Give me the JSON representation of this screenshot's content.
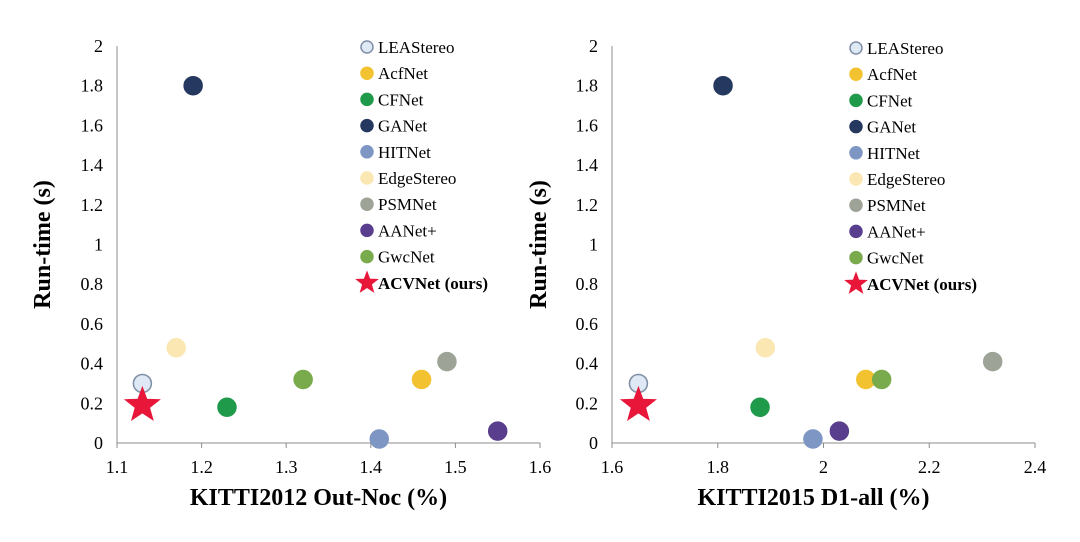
{
  "chart_data": [
    {
      "type": "scatter",
      "xlabel": "KITTI2012 Out-Noc (%)",
      "ylabel": "Run-time (s)",
      "xlim": [
        1.1,
        1.6
      ],
      "ylim": [
        0,
        2
      ],
      "xticks": [
        "1.1",
        "1.2",
        "1.3",
        "1.4",
        "1.5",
        "1.6"
      ],
      "yticks": [
        "0",
        "0.2",
        "0.4",
        "0.6",
        "0.8",
        "1",
        "1.2",
        "1.4",
        "1.6",
        "1.8",
        "2"
      ],
      "legend_position": "top-right",
      "series": [
        {
          "name": "LEAStereo",
          "color": "#dfe9f5",
          "edge": "#7f8fa6",
          "marker": "circle",
          "points": [
            {
              "x": 1.13,
              "y": 0.3
            }
          ]
        },
        {
          "name": "AcfNet",
          "color": "#f2c230",
          "edge": "#f2c230",
          "marker": "circle",
          "points": [
            {
              "x": 1.46,
              "y": 0.32
            }
          ]
        },
        {
          "name": "CFNet",
          "color": "#1f9a4b",
          "edge": "#1f9a4b",
          "marker": "circle",
          "points": [
            {
              "x": 1.23,
              "y": 0.18
            }
          ]
        },
        {
          "name": "GANet",
          "color": "#25385f",
          "edge": "#25385f",
          "marker": "circle",
          "points": [
            {
              "x": 1.19,
              "y": 1.8
            }
          ]
        },
        {
          "name": "HITNet",
          "color": "#7d96c3",
          "edge": "#7d96c3",
          "marker": "circle",
          "points": [
            {
              "x": 1.41,
              "y": 0.02
            }
          ]
        },
        {
          "name": "EdgeStereo",
          "color": "#fbe7b2",
          "edge": "#fbe7b2",
          "marker": "circle",
          "points": [
            {
              "x": 1.17,
              "y": 0.48
            }
          ]
        },
        {
          "name": "PSMNet",
          "color": "#9ea397",
          "edge": "#9ea397",
          "marker": "circle",
          "points": [
            {
              "x": 1.49,
              "y": 0.41
            }
          ]
        },
        {
          "name": "AANet+",
          "color": "#5a3e8e",
          "edge": "#5a3e8e",
          "marker": "circle",
          "points": [
            {
              "x": 1.55,
              "y": 0.06
            }
          ]
        },
        {
          "name": "GwcNet",
          "color": "#79ab4d",
          "edge": "#79ab4d",
          "marker": "circle",
          "points": [
            {
              "x": 1.32,
              "y": 0.32
            }
          ]
        },
        {
          "name": "ACVNet (ours)",
          "color": "#e8173a",
          "edge": "#e8173a",
          "marker": "star",
          "bold": true,
          "points": [
            {
              "x": 1.13,
              "y": 0.19
            }
          ]
        }
      ]
    },
    {
      "type": "scatter",
      "xlabel": "KITTI2015 D1-all (%)",
      "ylabel": "Run-time (s)",
      "xlim": [
        1.6,
        2.4
      ],
      "ylim": [
        0,
        2
      ],
      "xticks": [
        "1.6",
        "1.8",
        "2",
        "2.2",
        "2.4"
      ],
      "yticks": [
        "0",
        "0.2",
        "0.4",
        "0.6",
        "0.8",
        "1",
        "1.2",
        "1.4",
        "1.6",
        "1.8",
        "2"
      ],
      "legend_position": "top-right",
      "series": [
        {
          "name": "LEAStereo",
          "color": "#dfe9f5",
          "edge": "#7f8fa6",
          "marker": "circle",
          "points": [
            {
              "x": 1.65,
              "y": 0.3
            }
          ]
        },
        {
          "name": "AcfNet",
          "color": "#f2c230",
          "edge": "#f2c230",
          "marker": "circle",
          "points": [
            {
              "x": 2.08,
              "y": 0.32
            }
          ]
        },
        {
          "name": "CFNet",
          "color": "#1f9a4b",
          "edge": "#1f9a4b",
          "marker": "circle",
          "points": [
            {
              "x": 1.88,
              "y": 0.18
            }
          ]
        },
        {
          "name": "GANet",
          "color": "#25385f",
          "edge": "#25385f",
          "marker": "circle",
          "points": [
            {
              "x": 1.81,
              "y": 1.8
            }
          ]
        },
        {
          "name": "HITNet",
          "color": "#7d96c3",
          "edge": "#7d96c3",
          "marker": "circle",
          "points": [
            {
              "x": 1.98,
              "y": 0.02
            }
          ]
        },
        {
          "name": "EdgeStereo",
          "color": "#fbe7b2",
          "edge": "#fbe7b2",
          "marker": "circle",
          "points": [
            {
              "x": 1.89,
              "y": 0.48
            }
          ]
        },
        {
          "name": "PSMNet",
          "color": "#9ea397",
          "edge": "#9ea397",
          "marker": "circle",
          "points": [
            {
              "x": 2.32,
              "y": 0.41
            }
          ]
        },
        {
          "name": "AANet+",
          "color": "#5a3e8e",
          "edge": "#5a3e8e",
          "marker": "circle",
          "points": [
            {
              "x": 2.03,
              "y": 0.06
            }
          ]
        },
        {
          "name": "GwcNet",
          "color": "#79ab4d",
          "edge": "#79ab4d",
          "marker": "circle",
          "points": [
            {
              "x": 2.11,
              "y": 0.32
            }
          ]
        },
        {
          "name": "ACVNet (ours)",
          "color": "#e8173a",
          "edge": "#e8173a",
          "marker": "star",
          "bold": true,
          "points": [
            {
              "x": 1.65,
              "y": 0.19
            }
          ]
        }
      ]
    }
  ]
}
